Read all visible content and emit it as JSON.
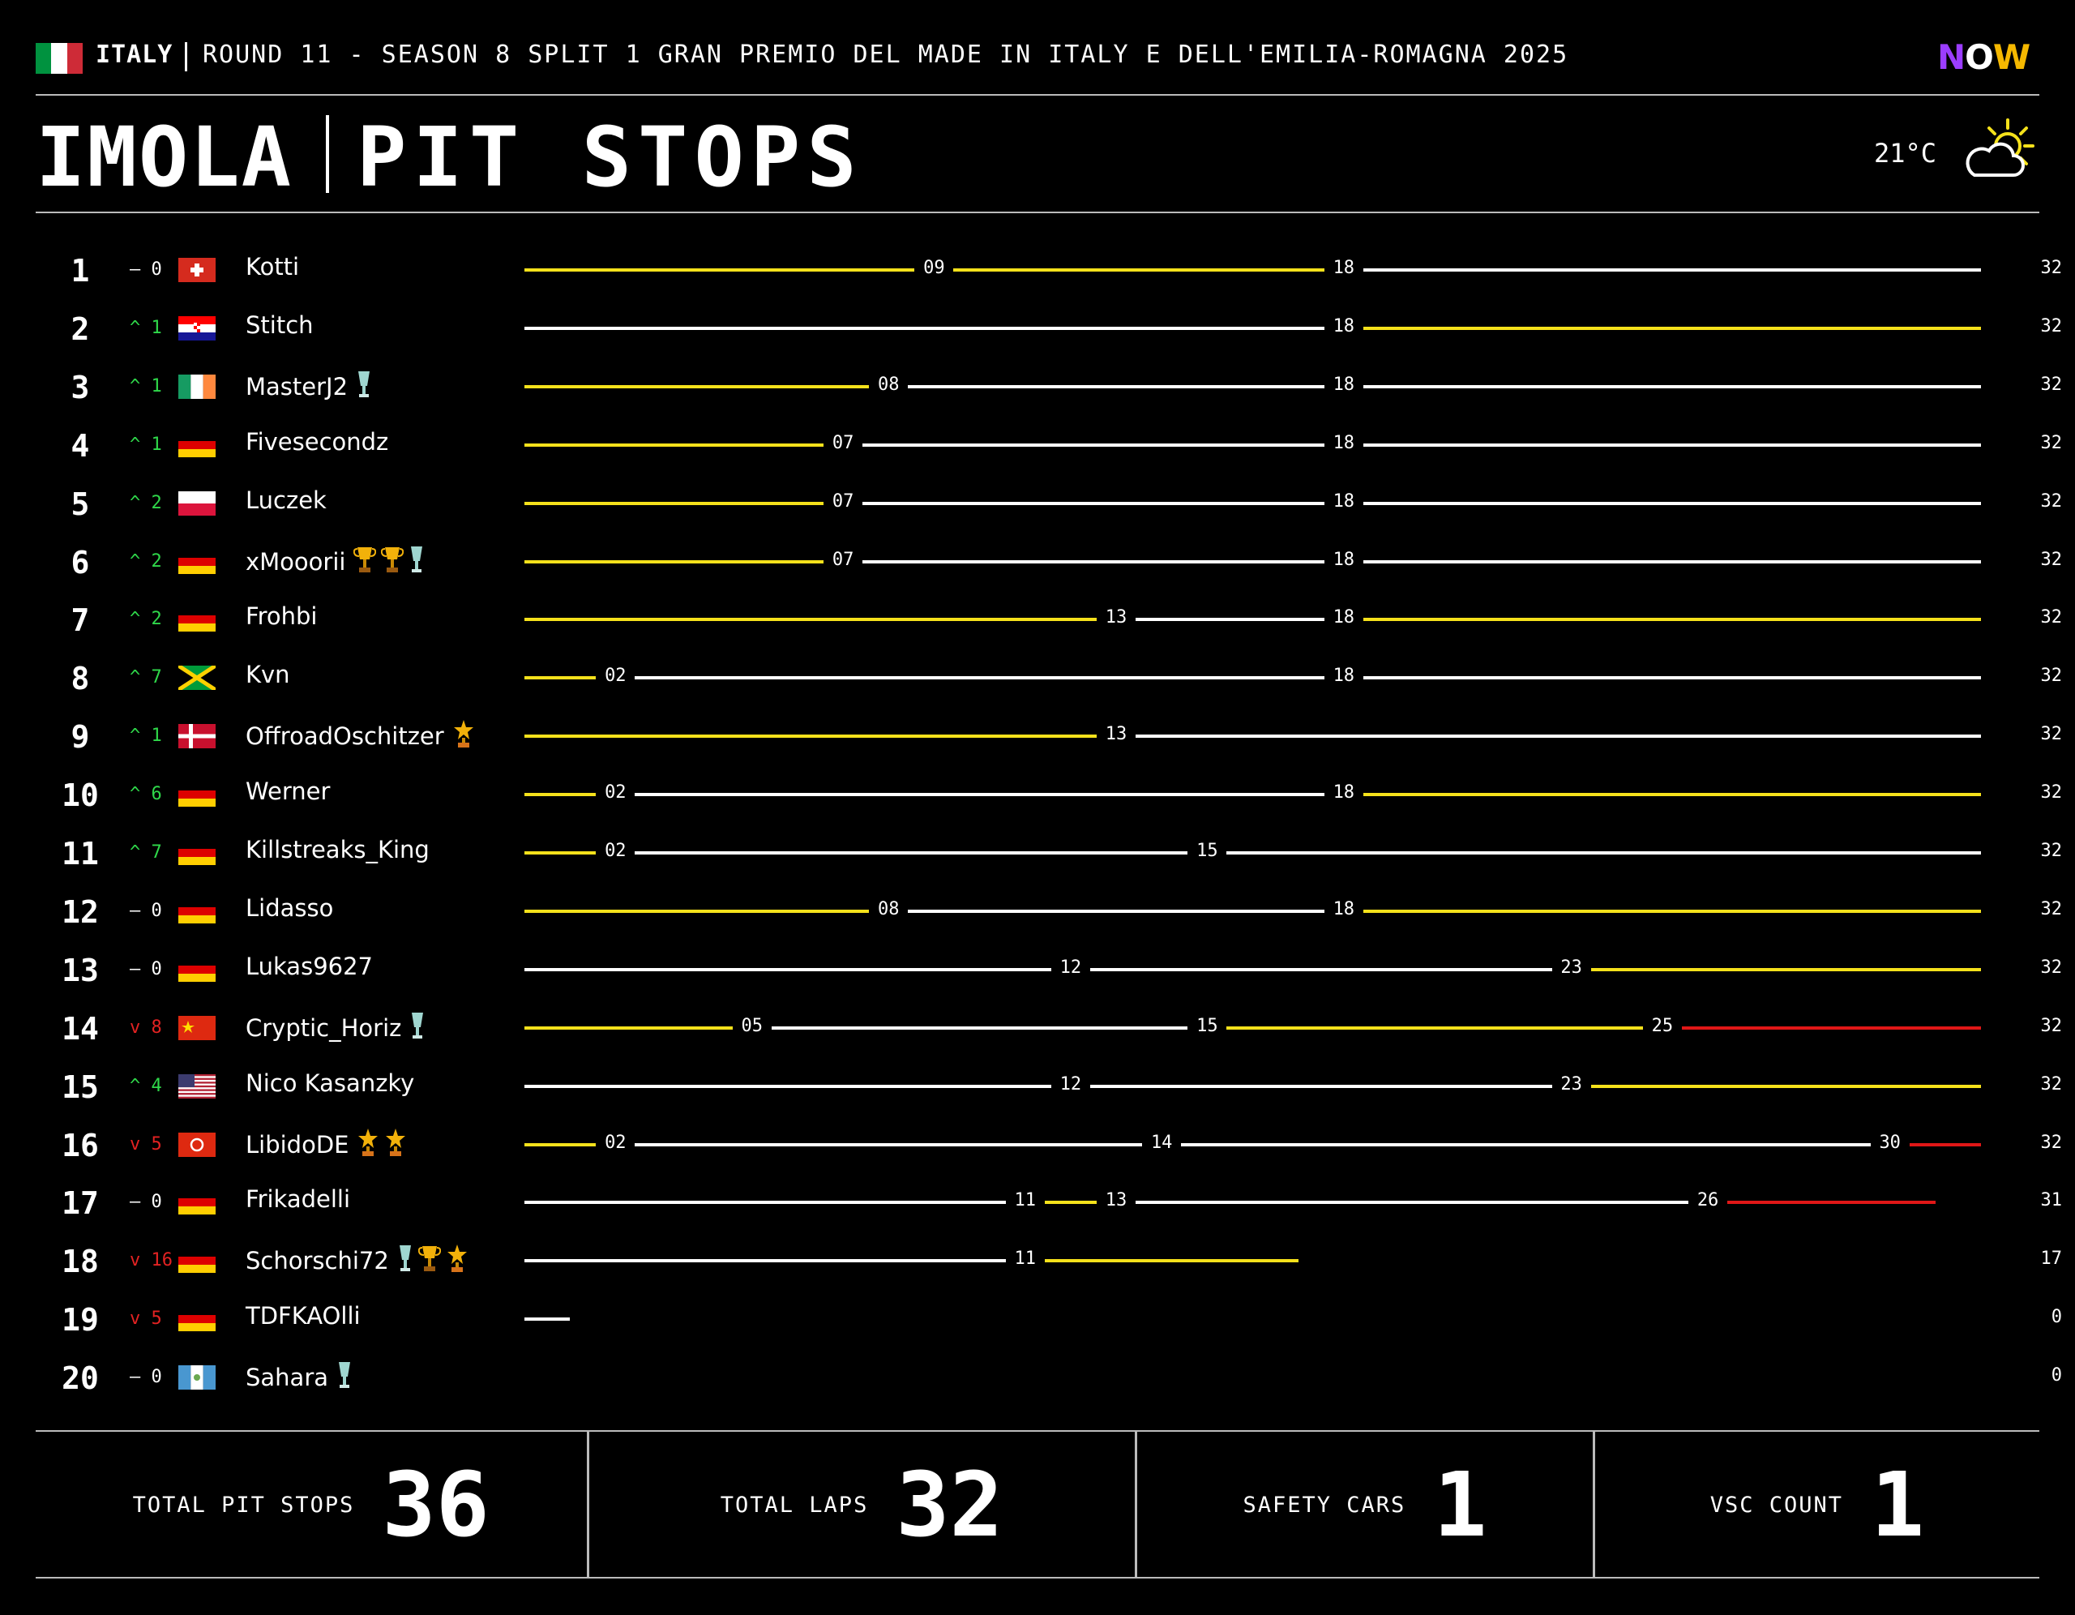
{
  "header": {
    "country": "ITALY",
    "race": "ROUND 11 - SEASON 8 SPLIT 1 GRAN PREMIO DEL MADE IN ITALY E DELL'EMILIA-ROMAGNA 2025",
    "flag_colors": [
      "#00923f",
      "#ffffff",
      "#ce2b37"
    ],
    "logo": {
      "n": "N",
      "o": "O",
      "w": "W"
    },
    "track": "IMOLA",
    "title": "PIT STOPS",
    "temperature": "21°C",
    "weather_icon": "sun-behind-cloud-icon"
  },
  "colors": {
    "tyre_yellow": "#f5e11b",
    "tyre_white": "#ffffff",
    "tyre_red": "#e01717",
    "up": "#2fd84a",
    "down": "#e32222"
  },
  "total_laps_scale": 32,
  "drivers": [
    {
      "pos": "1",
      "change": "– 0",
      "dir": "same",
      "flag": "switzerland",
      "name": "Kotti",
      "awards": [],
      "stints": [
        {
          "from": 0,
          "to": 9,
          "tyre": "yellow",
          "end": "09"
        },
        {
          "from": 9,
          "to": 18,
          "tyre": "yellow",
          "end": "18"
        },
        {
          "from": 18,
          "to": 32,
          "tyre": "white",
          "end": ""
        }
      ],
      "laps": "32"
    },
    {
      "pos": "2",
      "change": "^ 1",
      "dir": "up",
      "flag": "croatia",
      "name": "Stitch",
      "awards": [],
      "stints": [
        {
          "from": 0,
          "to": 18,
          "tyre": "white",
          "end": "18"
        },
        {
          "from": 18,
          "to": 32,
          "tyre": "yellow",
          "end": ""
        }
      ],
      "laps": "32"
    },
    {
      "pos": "3",
      "change": "^ 1",
      "dir": "up",
      "flag": "ireland",
      "name": "MasterJ2",
      "awards": [
        "silver-cup-icon"
      ],
      "stints": [
        {
          "from": 0,
          "to": 8,
          "tyre": "yellow",
          "end": "08"
        },
        {
          "from": 8,
          "to": 18,
          "tyre": "white",
          "end": "18"
        },
        {
          "from": 18,
          "to": 32,
          "tyre": "white",
          "end": ""
        }
      ],
      "laps": "32"
    },
    {
      "pos": "4",
      "change": "^ 1",
      "dir": "up",
      "flag": "germany",
      "name": "Fivesecondz",
      "awards": [],
      "stints": [
        {
          "from": 0,
          "to": 7,
          "tyre": "yellow",
          "end": "07"
        },
        {
          "from": 7,
          "to": 18,
          "tyre": "white",
          "end": "18"
        },
        {
          "from": 18,
          "to": 32,
          "tyre": "white",
          "end": ""
        }
      ],
      "laps": "32"
    },
    {
      "pos": "5",
      "change": "^ 2",
      "dir": "up",
      "flag": "poland",
      "name": "Luczek",
      "awards": [],
      "stints": [
        {
          "from": 0,
          "to": 7,
          "tyre": "yellow",
          "end": "07"
        },
        {
          "from": 7,
          "to": 18,
          "tyre": "white",
          "end": "18"
        },
        {
          "from": 18,
          "to": 32,
          "tyre": "white",
          "end": ""
        }
      ],
      "laps": "32"
    },
    {
      "pos": "6",
      "change": "^ 2",
      "dir": "up",
      "flag": "germany",
      "name": "xMooorii",
      "awards": [
        "gold-trophy-icon",
        "gold-trophy-icon",
        "silver-cup-icon"
      ],
      "stints": [
        {
          "from": 0,
          "to": 7,
          "tyre": "yellow",
          "end": "07"
        },
        {
          "from": 7,
          "to": 18,
          "tyre": "white",
          "end": "18"
        },
        {
          "from": 18,
          "to": 32,
          "tyre": "white",
          "end": ""
        }
      ],
      "laps": "32"
    },
    {
      "pos": "7",
      "change": "^ 2",
      "dir": "up",
      "flag": "germany",
      "name": "Frohbi",
      "awards": [],
      "stints": [
        {
          "from": 0,
          "to": 13,
          "tyre": "yellow",
          "end": "13"
        },
        {
          "from": 13,
          "to": 18,
          "tyre": "white",
          "end": "18"
        },
        {
          "from": 18,
          "to": 32,
          "tyre": "yellow",
          "end": ""
        }
      ],
      "laps": "32"
    },
    {
      "pos": "8",
      "change": "^ 7",
      "dir": "up",
      "flag": "jamaica",
      "name": "Kvn",
      "awards": [],
      "stints": [
        {
          "from": 0,
          "to": 2,
          "tyre": "yellow",
          "end": "02"
        },
        {
          "from": 2,
          "to": 18,
          "tyre": "white",
          "end": "18"
        },
        {
          "from": 18,
          "to": 32,
          "tyre": "white",
          "end": ""
        }
      ],
      "laps": "32"
    },
    {
      "pos": "9",
      "change": "^ 1",
      "dir": "up",
      "flag": "denmark",
      "name": "OffroadOschitzer",
      "awards": [
        "star-trophy-icon"
      ],
      "stints": [
        {
          "from": 0,
          "to": 13,
          "tyre": "yellow",
          "end": "13"
        },
        {
          "from": 13,
          "to": 32,
          "tyre": "white",
          "end": ""
        }
      ],
      "laps": "32"
    },
    {
      "pos": "10",
      "change": "^ 6",
      "dir": "up",
      "flag": "germany",
      "name": "Werner",
      "awards": [],
      "stints": [
        {
          "from": 0,
          "to": 2,
          "tyre": "yellow",
          "end": "02"
        },
        {
          "from": 2,
          "to": 18,
          "tyre": "white",
          "end": "18"
        },
        {
          "from": 18,
          "to": 32,
          "tyre": "yellow",
          "end": ""
        }
      ],
      "laps": "32"
    },
    {
      "pos": "11",
      "change": "^ 7",
      "dir": "up",
      "flag": "germany",
      "name": "Killstreaks_King",
      "awards": [],
      "stints": [
        {
          "from": 0,
          "to": 2,
          "tyre": "yellow",
          "end": "02"
        },
        {
          "from": 2,
          "to": 15,
          "tyre": "white",
          "end": "15"
        },
        {
          "from": 15,
          "to": 32,
          "tyre": "white",
          "end": ""
        }
      ],
      "laps": "32"
    },
    {
      "pos": "12",
      "change": "– 0",
      "dir": "same",
      "flag": "germany",
      "name": "Lidasso",
      "awards": [],
      "stints": [
        {
          "from": 0,
          "to": 8,
          "tyre": "yellow",
          "end": "08"
        },
        {
          "from": 8,
          "to": 18,
          "tyre": "white",
          "end": "18"
        },
        {
          "from": 18,
          "to": 32,
          "tyre": "yellow",
          "end": ""
        }
      ],
      "laps": "32"
    },
    {
      "pos": "13",
      "change": "– 0",
      "dir": "same",
      "flag": "germany",
      "name": "Lukas9627",
      "awards": [],
      "stints": [
        {
          "from": 0,
          "to": 12,
          "tyre": "white",
          "end": "12"
        },
        {
          "from": 12,
          "to": 23,
          "tyre": "white",
          "end": "23"
        },
        {
          "from": 23,
          "to": 32,
          "tyre": "yellow",
          "end": ""
        }
      ],
      "laps": "32"
    },
    {
      "pos": "14",
      "change": "v 8",
      "dir": "down",
      "flag": "china",
      "name": "Cryptic_Horiz",
      "awards": [
        "silver-cup-icon"
      ],
      "stints": [
        {
          "from": 0,
          "to": 5,
          "tyre": "yellow",
          "end": "05"
        },
        {
          "from": 5,
          "to": 15,
          "tyre": "white",
          "end": "15"
        },
        {
          "from": 15,
          "to": 25,
          "tyre": "yellow",
          "end": "25"
        },
        {
          "from": 25,
          "to": 32,
          "tyre": "red",
          "end": ""
        }
      ],
      "laps": "32"
    },
    {
      "pos": "15",
      "change": "^ 4",
      "dir": "up",
      "flag": "usa",
      "name": "Nico Kasanzky",
      "awards": [],
      "stints": [
        {
          "from": 0,
          "to": 12,
          "tyre": "white",
          "end": "12"
        },
        {
          "from": 12,
          "to": 23,
          "tyre": "white",
          "end": "23"
        },
        {
          "from": 23,
          "to": 32,
          "tyre": "yellow",
          "end": ""
        }
      ],
      "laps": "32"
    },
    {
      "pos": "16",
      "change": "v 5",
      "dir": "down",
      "flag": "hongkong",
      "name": "LibidoDE",
      "awards": [
        "star-trophy-icon",
        "star-trophy-icon"
      ],
      "stints": [
        {
          "from": 0,
          "to": 2,
          "tyre": "yellow",
          "end": "02"
        },
        {
          "from": 2,
          "to": 14,
          "tyre": "white",
          "end": "14"
        },
        {
          "from": 14,
          "to": 30,
          "tyre": "white",
          "end": "30"
        },
        {
          "from": 30,
          "to": 32,
          "tyre": "red",
          "end": ""
        }
      ],
      "laps": "32"
    },
    {
      "pos": "17",
      "change": "– 0",
      "dir": "same",
      "flag": "germany",
      "name": "Frikadelli",
      "awards": [],
      "stints": [
        {
          "from": 0,
          "to": 11,
          "tyre": "white",
          "end": "11"
        },
        {
          "from": 11,
          "to": 13,
          "tyre": "yellow",
          "end": "13"
        },
        {
          "from": 13,
          "to": 26,
          "tyre": "white",
          "end": "26"
        },
        {
          "from": 26,
          "to": 31,
          "tyre": "red",
          "end": ""
        }
      ],
      "laps": "31"
    },
    {
      "pos": "18",
      "change": "v 16",
      "dir": "down",
      "flag": "germany",
      "name": "Schorschi72",
      "awards": [
        "silver-cup-icon",
        "gold-trophy-icon",
        "star-trophy-icon"
      ],
      "stints": [
        {
          "from": 0,
          "to": 11,
          "tyre": "white",
          "end": "11"
        },
        {
          "from": 11,
          "to": 17,
          "tyre": "yellow",
          "end": ""
        }
      ],
      "laps": "17"
    },
    {
      "pos": "19",
      "change": "v 5",
      "dir": "down",
      "flag": "germany",
      "name": "TDFKAOlli",
      "awards": [],
      "stints": [
        {
          "from": 0,
          "to": 1,
          "tyre": "white",
          "end": ""
        }
      ],
      "laps": "0"
    },
    {
      "pos": "20",
      "change": "– 0",
      "dir": "same",
      "flag": "guatemala",
      "name": "Sahara",
      "awards": [
        "silver-cup-icon"
      ],
      "stints": [],
      "laps": "0"
    }
  ],
  "stats": [
    {
      "label": "TOTAL PIT STOPS",
      "value": "36"
    },
    {
      "label": "TOTAL LAPS",
      "value": "32"
    },
    {
      "label": "SAFETY CARS",
      "value": "1"
    },
    {
      "label": "VSC COUNT",
      "value": "1"
    }
  ]
}
